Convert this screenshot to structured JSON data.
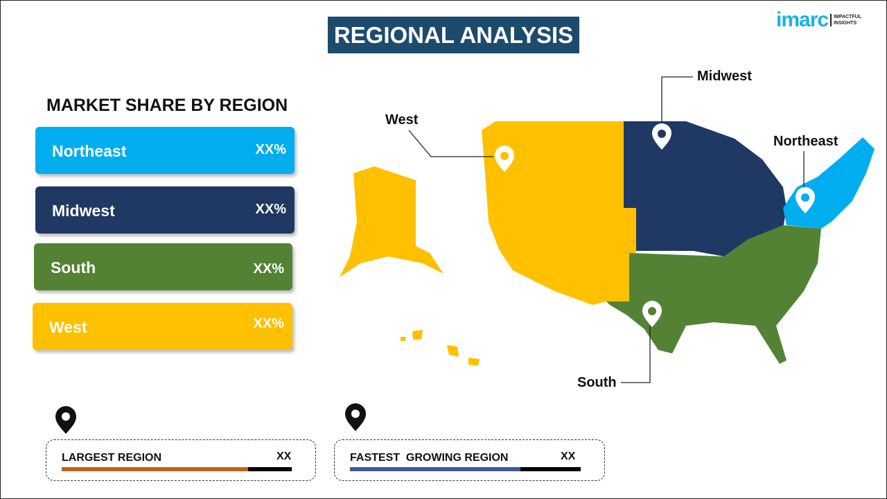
{
  "title": "REGIONAL ANALYSIS",
  "logo": {
    "brand": "imarc",
    "tagline_1": "IMPACTFUL",
    "tagline_2": "INSIGHTS"
  },
  "subtitle": "MARKET SHARE BY REGION",
  "regions": [
    {
      "name": "Northeast",
      "value": "XX%",
      "color": "#00aeef"
    },
    {
      "name": "Midwest",
      "value": "XX%",
      "color": "#1f3864"
    },
    {
      "name": "South",
      "value": "XX%",
      "color": "#548235"
    },
    {
      "name": "West",
      "value": "XX%",
      "color": "#ffc000"
    }
  ],
  "map_labels": {
    "west": "West",
    "midwest": "Midwest",
    "northeast": "Northeast",
    "south": "South"
  },
  "largest": {
    "label": "LARGEST REGION",
    "value": "XX",
    "fill_fraction": 0.81,
    "color": "#c0641f"
  },
  "fastest": {
    "label": "FASTEST  GROWING REGION",
    "value": "XX",
    "fill_fraction": 0.74,
    "color": "#3a5a9c"
  },
  "icons": [
    "map-pin-icon"
  ]
}
